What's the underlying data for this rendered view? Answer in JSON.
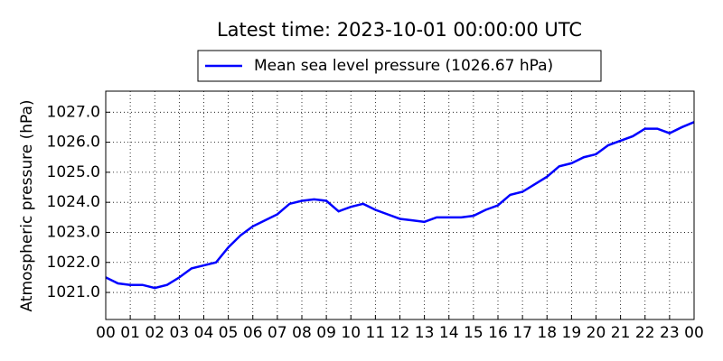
{
  "chart_data": {
    "type": "line",
    "title": "Latest time: 2023-10-01 00:00:00 UTC",
    "y_label": "Atmospheric pressure (hPa)",
    "x": [
      0,
      0.5,
      1,
      1.5,
      2,
      2.5,
      3,
      3.5,
      4,
      4.5,
      5,
      5.5,
      6,
      6.5,
      7,
      7.5,
      8,
      8.5,
      9,
      9.5,
      10,
      10.5,
      11,
      11.5,
      12,
      12.5,
      13,
      13.5,
      14,
      14.5,
      15,
      15.5,
      16,
      16.5,
      17,
      17.5,
      18,
      18.5,
      19,
      19.5,
      20,
      20.5,
      21,
      21.5,
      22,
      22.5,
      23,
      23.5,
      24
    ],
    "series": [
      {
        "name": "Mean sea level pressure (1026.67 hPa)",
        "color": "#0000ff",
        "values": [
          1021.5,
          1021.3,
          1021.25,
          1021.25,
          1021.15,
          1021.25,
          1021.5,
          1021.8,
          1021.9,
          1022.0,
          1022.5,
          1022.9,
          1023.2,
          1023.4,
          1023.6,
          1023.95,
          1024.05,
          1024.1,
          1024.05,
          1023.7,
          1023.85,
          1023.95,
          1023.75,
          1023.6,
          1023.45,
          1023.4,
          1023.35,
          1023.5,
          1023.5,
          1023.5,
          1023.55,
          1023.75,
          1023.9,
          1024.25,
          1024.35,
          1024.6,
          1024.85,
          1025.2,
          1025.3,
          1025.5,
          1025.6,
          1025.9,
          1026.05,
          1026.2,
          1026.45,
          1026.45,
          1026.3,
          1026.5,
          1026.67
        ]
      }
    ],
    "xlim": [
      0,
      24
    ],
    "xticks": [
      {
        "value": 0,
        "label": "00"
      },
      {
        "value": 1,
        "label": "01"
      },
      {
        "value": 2,
        "label": "02"
      },
      {
        "value": 3,
        "label": "03"
      },
      {
        "value": 4,
        "label": "04"
      },
      {
        "value": 5,
        "label": "05"
      },
      {
        "value": 6,
        "label": "06"
      },
      {
        "value": 7,
        "label": "07"
      },
      {
        "value": 8,
        "label": "08"
      },
      {
        "value": 9,
        "label": "09"
      },
      10,
      11,
      12,
      13,
      14,
      15,
      16,
      17,
      18,
      19,
      20,
      21,
      22,
      23,
      {
        "value": 24,
        "label": "00"
      }
    ],
    "ylim": [
      1020.1,
      1027.7
    ],
    "yticks": [
      {
        "value": 1021,
        "label": "1021.0"
      },
      {
        "value": 1022,
        "label": "1022.0"
      },
      {
        "value": 1023,
        "label": "1023.0"
      },
      {
        "value": 1024,
        "label": "1024.0"
      },
      {
        "value": 1025,
        "label": "1025.0"
      },
      {
        "value": 1026,
        "label": "1026.0"
      },
      {
        "value": 1027,
        "label": "1027.0"
      }
    ],
    "grid": true,
    "legend": "top"
  }
}
